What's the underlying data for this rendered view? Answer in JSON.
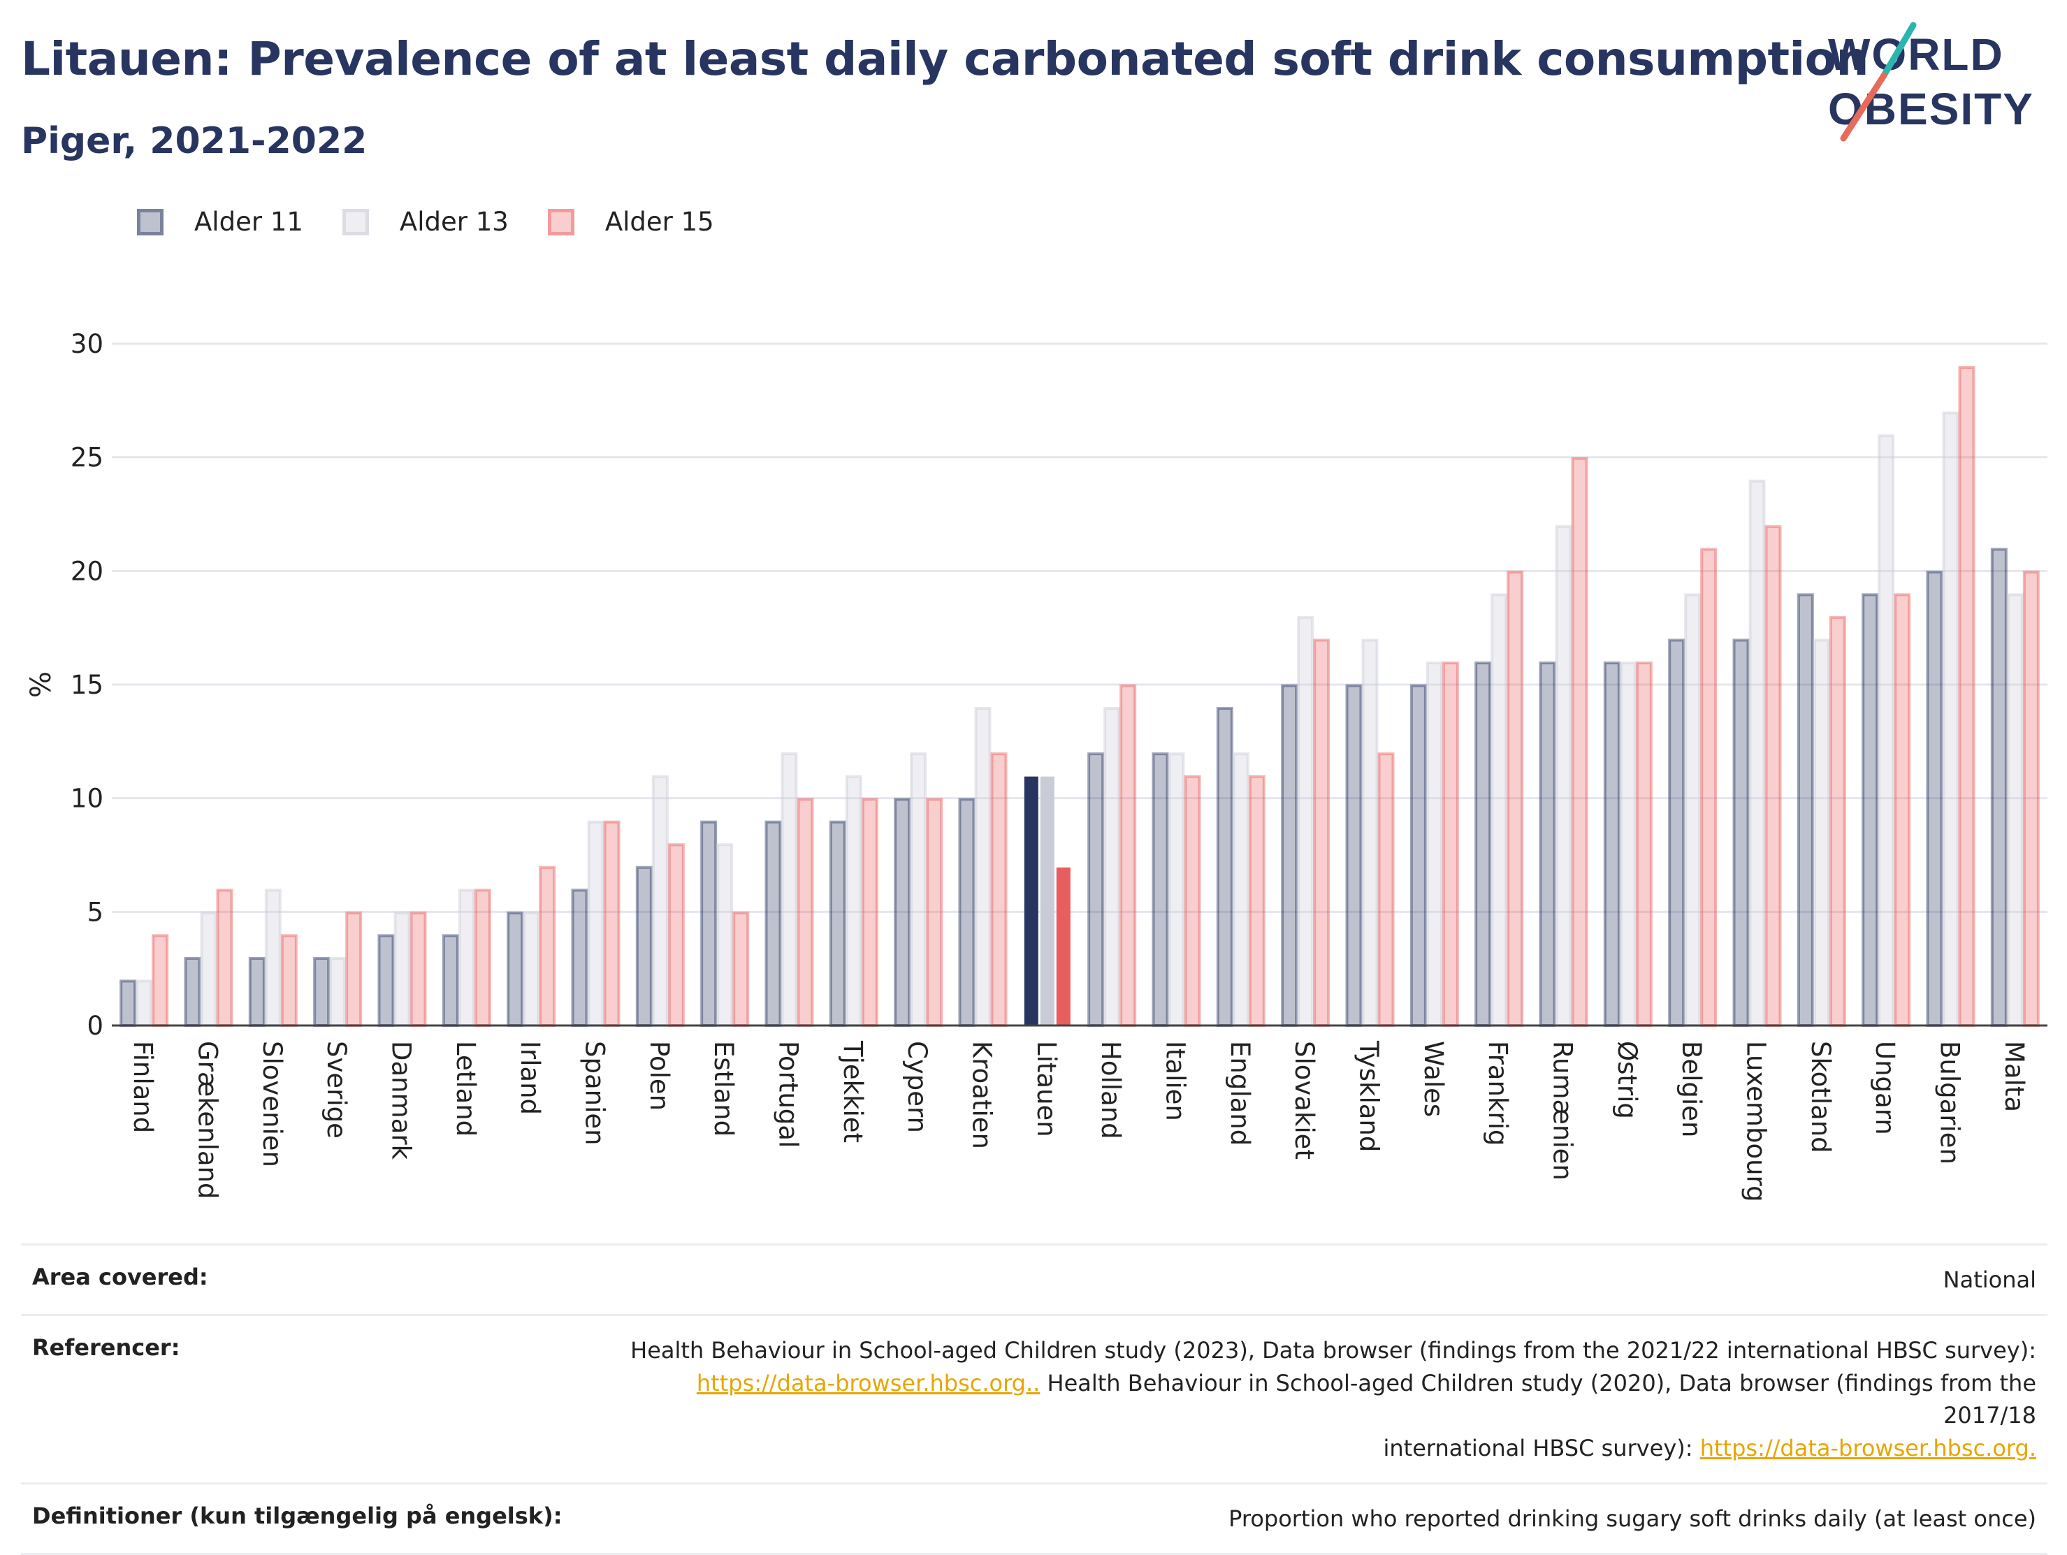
{
  "title": "Litauen: Prevalence of at least daily carbonated soft drink consumption",
  "subtitle": "Piger, 2021-2022",
  "logo": {
    "line1": "WORLD",
    "line2": "OBESITY"
  },
  "colors": {
    "age11": "#283560",
    "age13": "#c9cbd6",
    "age15": "#e85d5d",
    "title": "#283560"
  },
  "highlight_country": "Litauen",
  "chart_data": {
    "type": "bar",
    "ylabel": "%",
    "ylim": [
      0,
      30
    ],
    "yticks": [
      0,
      5,
      10,
      15,
      20,
      25,
      30
    ],
    "grid": true,
    "legend": "top-left",
    "categories": [
      "Finland",
      "Grækenland",
      "Slovenien",
      "Sverige",
      "Danmark",
      "Letland",
      "Irland",
      "Spanien",
      "Polen",
      "Estland",
      "Portugal",
      "Tjekkiet",
      "Cypern",
      "Kroatien",
      "Litauen",
      "Holland",
      "Italien",
      "England",
      "Slovakiet",
      "Tyskland",
      "Wales",
      "Frankrig",
      "Rumænien",
      "Østrig",
      "Belgien",
      "Luxembourg",
      "Skotland",
      "Ungarn",
      "Bulgarien",
      "Malta"
    ],
    "series": [
      {
        "name": "Alder 11",
        "values": [
          2,
          3,
          3,
          3,
          4,
          4,
          5,
          6,
          7,
          9,
          9,
          9,
          10,
          10,
          11,
          12,
          12,
          14,
          15,
          15,
          15,
          16,
          16,
          16,
          17,
          17,
          19,
          19,
          20,
          21
        ]
      },
      {
        "name": "Alder 13",
        "values": [
          2,
          5,
          6,
          3,
          5,
          6,
          5,
          9,
          11,
          8,
          12,
          11,
          12,
          14,
          11,
          14,
          12,
          12,
          18,
          17,
          16,
          19,
          22,
          16,
          19,
          24,
          17,
          26,
          27,
          19
        ]
      },
      {
        "name": "Alder 15",
        "values": [
          4,
          6,
          4,
          5,
          5,
          6,
          7,
          9,
          8,
          5,
          10,
          10,
          10,
          12,
          7,
          15,
          11,
          11,
          17,
          12,
          16,
          20,
          25,
          16,
          21,
          22,
          18,
          19,
          29,
          20
        ]
      }
    ]
  },
  "meta": {
    "area_label": "Area covered:",
    "area_value": "National",
    "ref_label": "Referencer:",
    "ref_text1": "Health Behaviour in School-aged Children study (2023), Data browser (findings from the 2021/22 international HBSC survey):",
    "ref_link1": "https://data-browser.hbsc.org..",
    "ref_text2": " Health Behaviour in School-aged Children study (2020), Data browser (findings from the 2017/18",
    "ref_text3": "international HBSC survey): ",
    "ref_link2": "https://data-browser.hbsc.org.",
    "def_label": "Definitioner (kun tilgængelig på engelsk):",
    "def_value": "Proportion who reported drinking sugary soft drinks daily (at least once)"
  }
}
